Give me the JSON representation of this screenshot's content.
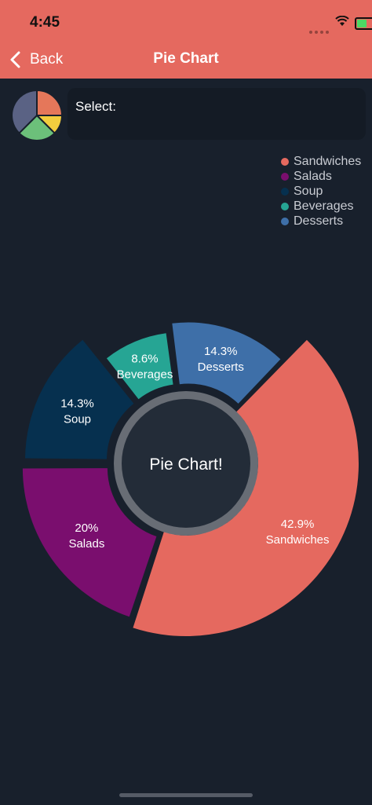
{
  "status": {
    "time": "4:45"
  },
  "nav": {
    "back_label": "Back",
    "title": "Pie Chart"
  },
  "select": {
    "label": "Select:"
  },
  "chart_data": {
    "type": "pie",
    "center_label": "Pie Chart!",
    "slices": [
      {
        "name": "Sandwiches",
        "value": 42.9,
        "label": "42.9%",
        "color": "#e5695f"
      },
      {
        "name": "Salads",
        "value": 20,
        "label": "20%",
        "color": "#7a0e6e"
      },
      {
        "name": "Soup",
        "value": 14.3,
        "label": "14.3%",
        "color": "#06304f"
      },
      {
        "name": "Beverages",
        "value": 8.6,
        "label": "8.6%",
        "color": "#26a594"
      },
      {
        "name": "Desserts",
        "value": 14.3,
        "label": "14.3%",
        "color": "#3e6fa8"
      }
    ],
    "legend": [
      "Sandwiches",
      "Salads",
      "Soup",
      "Beverages",
      "Desserts"
    ],
    "legend_position": "top-right"
  }
}
